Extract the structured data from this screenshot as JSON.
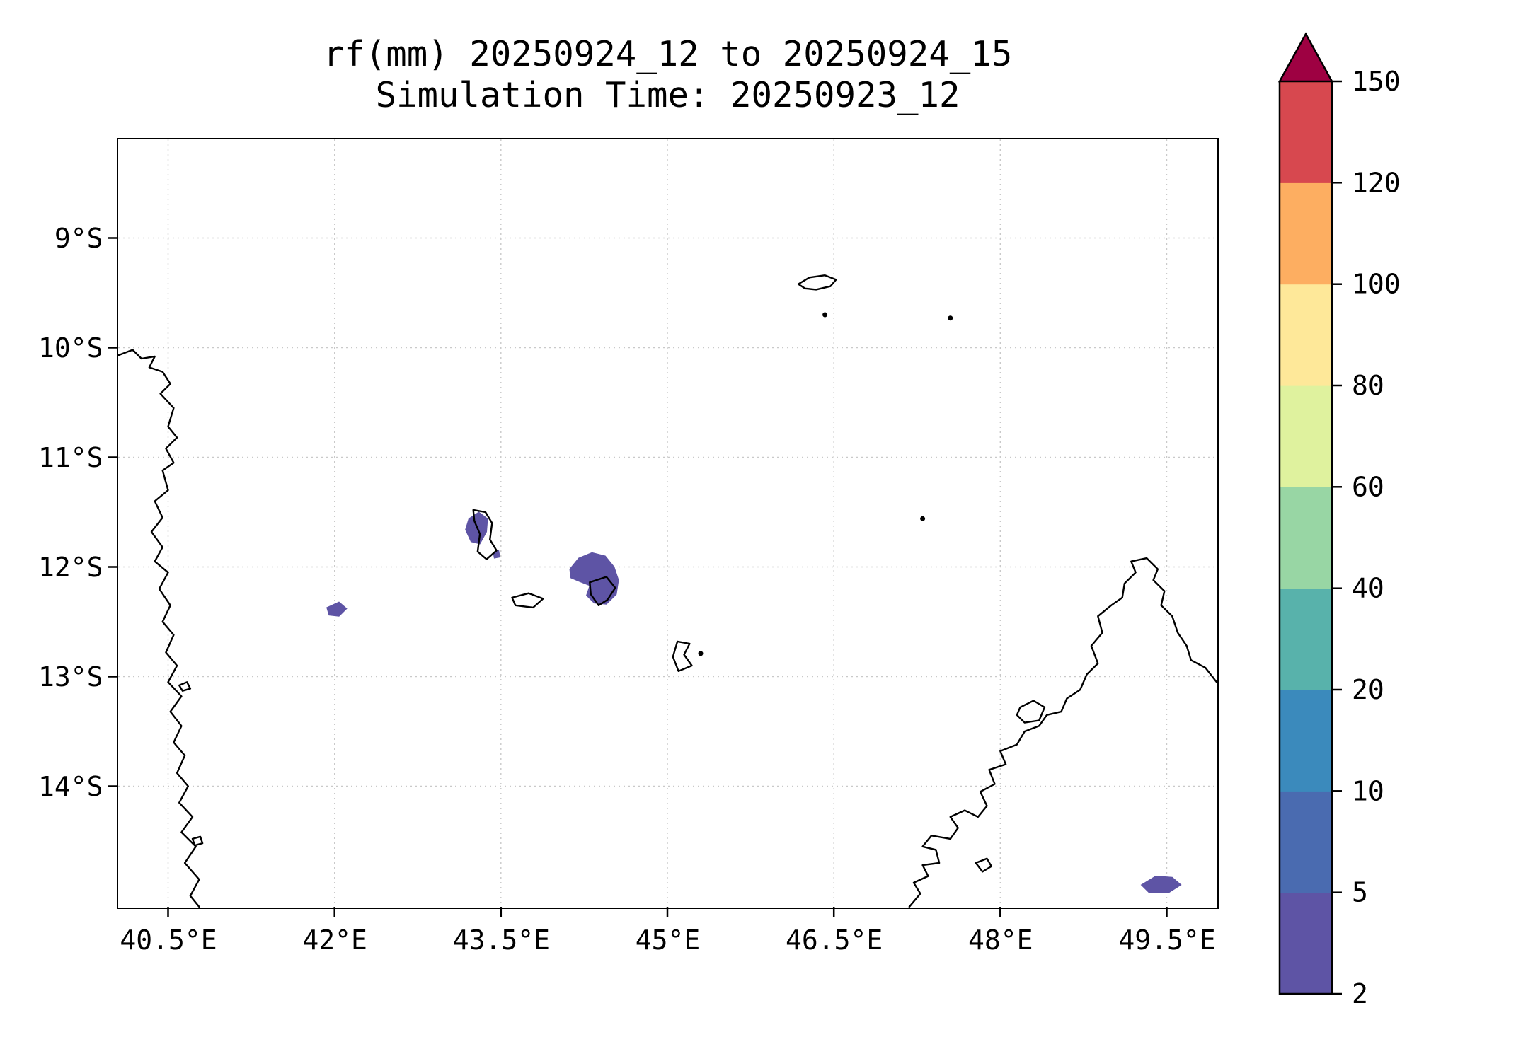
{
  "chart_data": {
    "type": "heatmap",
    "title": "rf(mm) 20250924_12 to 20250924_15",
    "subtitle": "Simulation Time: 20250923_12",
    "variable": "rf",
    "units": "mm",
    "grid": true,
    "background_color": "#ffffff",
    "x_axis": {
      "ticks": [
        40.5,
        42,
        43.5,
        45,
        46.5,
        48,
        49.5
      ],
      "tick_labels": [
        "40.5°E",
        "42°E",
        "43.5°E",
        "45°E",
        "46.5°E",
        "48°E",
        "49.5°E"
      ],
      "range": [
        40.05,
        49.95
      ]
    },
    "y_axis": {
      "ticks": [
        9,
        10,
        11,
        12,
        13,
        14
      ],
      "tick_labels": [
        "9°S",
        "10°S",
        "11°S",
        "12°S",
        "13°S",
        "14°S"
      ],
      "range": [
        8.1,
        15.1
      ]
    },
    "colorbar": {
      "boundaries": [
        2,
        5,
        10,
        20,
        40,
        60,
        80,
        100,
        120,
        150
      ],
      "tick_labels": [
        "2",
        "5",
        "10",
        "20",
        "40",
        "60",
        "80",
        "100",
        "120",
        "150"
      ],
      "segment_colors": [
        "#5e54a5",
        "#4a6bb0",
        "#3b8abc",
        "#58b2ab",
        "#98d6a4",
        "#dff29e",
        "#fee899",
        "#fdae61",
        "#d7484f"
      ],
      "over_color": "#9e0142",
      "extend": "max",
      "position": "right"
    },
    "rain_patches_summary": [
      {
        "name": "west-42E",
        "approx_lon_e": 42.0,
        "approx_lat_s": 12.4,
        "value_band_mm": "2-5"
      },
      {
        "name": "grande-comore",
        "approx_lon_e": 43.3,
        "approx_lat_s": 11.65,
        "value_band_mm": "2-5"
      },
      {
        "name": "grande-comore-south-speck",
        "approx_lon_e": 43.46,
        "approx_lat_s": 11.9,
        "value_band_mm": "2-5"
      },
      {
        "name": "anjouan",
        "approx_lon_e": 44.35,
        "approx_lat_s": 12.12,
        "value_band_mm": "2-5"
      },
      {
        "name": "madagascar-northeast-coast",
        "approx_lon_e": 49.45,
        "approx_lat_s": 14.9,
        "value_band_mm": "2-5"
      }
    ],
    "rain_patch_polygons": [
      {
        "name": "west-42E",
        "value_band_mm": "2-5",
        "points": [
          [
            41.93,
            12.37
          ],
          [
            42.04,
            12.32
          ],
          [
            42.11,
            12.38
          ],
          [
            42.04,
            12.45
          ],
          [
            41.95,
            12.44
          ]
        ]
      },
      {
        "name": "grande-comore",
        "value_band_mm": "2-5",
        "points": [
          [
            43.21,
            11.56
          ],
          [
            43.3,
            11.5
          ],
          [
            43.38,
            11.56
          ],
          [
            43.37,
            11.68
          ],
          [
            43.31,
            11.79
          ],
          [
            43.23,
            11.77
          ],
          [
            43.18,
            11.66
          ]
        ]
      },
      {
        "name": "grande-comore-south-speck",
        "value_band_mm": "2-5",
        "points": [
          [
            43.43,
            11.87
          ],
          [
            43.48,
            11.85
          ],
          [
            43.49,
            11.91
          ],
          [
            43.44,
            11.92
          ]
        ]
      },
      {
        "name": "anjouan",
        "value_band_mm": "2-5",
        "points": [
          [
            44.12,
            12.02
          ],
          [
            44.2,
            11.92
          ],
          [
            44.32,
            11.87
          ],
          [
            44.44,
            11.9
          ],
          [
            44.52,
            12.0
          ],
          [
            44.56,
            12.12
          ],
          [
            44.54,
            12.25
          ],
          [
            44.45,
            12.34
          ],
          [
            44.34,
            12.33
          ],
          [
            44.27,
            12.26
          ],
          [
            44.3,
            12.17
          ],
          [
            44.2,
            12.13
          ],
          [
            44.13,
            12.1
          ]
        ]
      },
      {
        "name": "madagascar-northeast-coast",
        "value_band_mm": "2-5",
        "points": [
          [
            49.27,
            14.9
          ],
          [
            49.4,
            14.82
          ],
          [
            49.55,
            14.83
          ],
          [
            49.63,
            14.9
          ],
          [
            49.52,
            14.97
          ],
          [
            49.34,
            14.97
          ]
        ]
      }
    ],
    "coastlines": [
      {
        "name": "africa-mainland",
        "closed": false,
        "points": [
          [
            40.05,
            10.07
          ],
          [
            40.18,
            10.02
          ],
          [
            40.26,
            10.1
          ],
          [
            40.38,
            10.08
          ],
          [
            40.33,
            10.18
          ],
          [
            40.45,
            10.22
          ],
          [
            40.52,
            10.33
          ],
          [
            40.43,
            10.42
          ],
          [
            40.55,
            10.55
          ],
          [
            40.5,
            10.72
          ],
          [
            40.58,
            10.82
          ],
          [
            40.48,
            10.92
          ],
          [
            40.55,
            11.05
          ],
          [
            40.45,
            11.12
          ],
          [
            40.5,
            11.3
          ],
          [
            40.38,
            11.4
          ],
          [
            40.45,
            11.55
          ],
          [
            40.35,
            11.68
          ],
          [
            40.45,
            11.82
          ],
          [
            40.38,
            11.95
          ],
          [
            40.5,
            12.05
          ],
          [
            40.42,
            12.2
          ],
          [
            40.52,
            12.35
          ],
          [
            40.45,
            12.5
          ],
          [
            40.55,
            12.62
          ],
          [
            40.48,
            12.78
          ],
          [
            40.58,
            12.9
          ],
          [
            40.5,
            13.05
          ],
          [
            40.62,
            13.18
          ],
          [
            40.52,
            13.32
          ],
          [
            40.62,
            13.45
          ],
          [
            40.55,
            13.6
          ],
          [
            40.65,
            13.72
          ],
          [
            40.58,
            13.88
          ],
          [
            40.68,
            14.0
          ],
          [
            40.6,
            14.15
          ],
          [
            40.72,
            14.28
          ],
          [
            40.62,
            14.42
          ],
          [
            40.75,
            14.55
          ],
          [
            40.65,
            14.7
          ],
          [
            40.78,
            14.85
          ],
          [
            40.7,
            15.0
          ],
          [
            40.78,
            15.1
          ]
        ]
      },
      {
        "name": "africa-coastal-islet-north",
        "closed": true,
        "points": [
          [
            40.6,
            13.08
          ],
          [
            40.67,
            13.05
          ],
          [
            40.7,
            13.11
          ],
          [
            40.63,
            13.13
          ]
        ]
      },
      {
        "name": "africa-coastal-islet-south",
        "closed": true,
        "points": [
          [
            40.72,
            14.48
          ],
          [
            40.79,
            14.46
          ],
          [
            40.81,
            14.52
          ],
          [
            40.74,
            14.54
          ]
        ]
      },
      {
        "name": "madagascar",
        "closed": false,
        "points": [
          [
            47.18,
            15.1
          ],
          [
            47.28,
            14.98
          ],
          [
            47.22,
            14.88
          ],
          [
            47.35,
            14.82
          ],
          [
            47.3,
            14.72
          ],
          [
            47.45,
            14.7
          ],
          [
            47.42,
            14.58
          ],
          [
            47.3,
            14.55
          ],
          [
            47.38,
            14.45
          ],
          [
            47.55,
            14.48
          ],
          [
            47.62,
            14.38
          ],
          [
            47.55,
            14.28
          ],
          [
            47.68,
            14.22
          ],
          [
            47.8,
            14.28
          ],
          [
            47.88,
            14.18
          ],
          [
            47.82,
            14.05
          ],
          [
            47.95,
            13.98
          ],
          [
            47.9,
            13.85
          ],
          [
            48.05,
            13.8
          ],
          [
            48.0,
            13.68
          ],
          [
            48.15,
            13.62
          ],
          [
            48.22,
            13.5
          ],
          [
            48.35,
            13.45
          ],
          [
            48.42,
            13.35
          ],
          [
            48.55,
            13.32
          ],
          [
            48.6,
            13.2
          ],
          [
            48.72,
            13.12
          ],
          [
            48.78,
            12.98
          ],
          [
            48.88,
            12.88
          ],
          [
            48.82,
            12.72
          ],
          [
            48.92,
            12.6
          ],
          [
            48.88,
            12.45
          ],
          [
            49.0,
            12.35
          ],
          [
            49.1,
            12.28
          ],
          [
            49.12,
            12.15
          ],
          [
            49.22,
            12.05
          ],
          [
            49.18,
            11.95
          ],
          [
            49.32,
            11.92
          ],
          [
            49.42,
            12.02
          ],
          [
            49.38,
            12.12
          ],
          [
            49.48,
            12.22
          ],
          [
            49.45,
            12.35
          ],
          [
            49.55,
            12.45
          ],
          [
            49.6,
            12.6
          ],
          [
            49.68,
            12.72
          ],
          [
            49.72,
            12.85
          ],
          [
            49.85,
            12.92
          ],
          [
            49.95,
            13.05
          ]
        ]
      },
      {
        "name": "nosy-be",
        "closed": true,
        "points": [
          [
            48.18,
            13.28
          ],
          [
            48.3,
            13.22
          ],
          [
            48.4,
            13.28
          ],
          [
            48.35,
            13.4
          ],
          [
            48.22,
            13.42
          ],
          [
            48.15,
            13.35
          ]
        ]
      },
      {
        "name": "madagascar-west-islet",
        "closed": true,
        "points": [
          [
            47.78,
            14.7
          ],
          [
            47.88,
            14.66
          ],
          [
            47.92,
            14.73
          ],
          [
            47.84,
            14.78
          ]
        ]
      },
      {
        "name": "grande-comore-island",
        "closed": true,
        "points": [
          [
            43.25,
            11.48
          ],
          [
            43.36,
            11.5
          ],
          [
            43.42,
            11.6
          ],
          [
            43.4,
            11.75
          ],
          [
            43.46,
            11.85
          ],
          [
            43.37,
            11.93
          ],
          [
            43.29,
            11.86
          ],
          [
            43.31,
            11.7
          ],
          [
            43.26,
            11.58
          ]
        ]
      },
      {
        "name": "moheli-island",
        "closed": true,
        "points": [
          [
            43.6,
            12.28
          ],
          [
            43.75,
            12.24
          ],
          [
            43.88,
            12.29
          ],
          [
            43.79,
            12.37
          ],
          [
            43.63,
            12.35
          ]
        ]
      },
      {
        "name": "anjouan-island",
        "closed": true,
        "points": [
          [
            44.3,
            12.14
          ],
          [
            44.45,
            12.09
          ],
          [
            44.53,
            12.19
          ],
          [
            44.46,
            12.3
          ],
          [
            44.38,
            12.35
          ],
          [
            44.31,
            12.25
          ]
        ]
      },
      {
        "name": "mayotte-island",
        "closed": true,
        "points": [
          [
            45.09,
            12.68
          ],
          [
            45.2,
            12.7
          ],
          [
            45.15,
            12.8
          ],
          [
            45.22,
            12.9
          ],
          [
            45.1,
            12.95
          ],
          [
            45.05,
            12.82
          ]
        ]
      },
      {
        "name": "aldabra-atoll",
        "closed": true,
        "points": [
          [
            46.18,
            9.42
          ],
          [
            46.28,
            9.36
          ],
          [
            46.42,
            9.34
          ],
          [
            46.52,
            9.38
          ],
          [
            46.47,
            9.44
          ],
          [
            46.34,
            9.47
          ],
          [
            46.24,
            9.46
          ]
        ]
      }
    ],
    "island_dots": [
      [
        46.42,
        9.7
      ],
      [
        47.55,
        9.73
      ],
      [
        47.3,
        11.56
      ],
      [
        45.3,
        12.79
      ]
    ]
  }
}
